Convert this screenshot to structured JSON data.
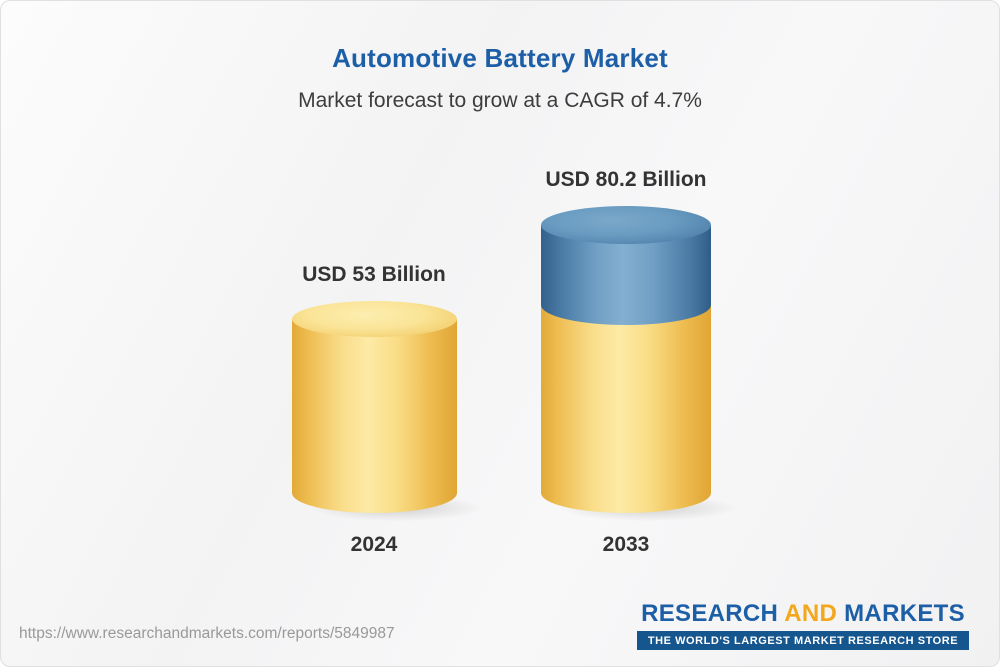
{
  "header": {
    "title": "Automotive Battery Market",
    "subtitle": "Market forecast to grow at a CAGR of 4.7%"
  },
  "chart_data": {
    "type": "bar",
    "title": "Automotive Battery Market",
    "subtitle": "Market forecast to grow at a CAGR of 4.7%",
    "categories": [
      "2024",
      "2033"
    ],
    "values": [
      53,
      80.2
    ],
    "unit": "USD Billion",
    "value_labels": [
      "USD 53 Billion",
      "USD 80.2 Billion"
    ],
    "cagr_percent": 4.7,
    "legend": "none",
    "axes": "none",
    "grid": false,
    "bar_style": "3d-cylinder",
    "colors": {
      "base_segment": "#F5CB5E",
      "growth_segment": "#4E80AC",
      "title": "#1D5FA7",
      "label_text": "#333333"
    }
  },
  "footer": {
    "url": "https://www.researchandmarkets.com/reports/5849987",
    "logo": {
      "research": "RESEARCH",
      "and": "AND",
      "markets": "MARKETS",
      "tagline": "THE WORLD'S LARGEST MARKET RESEARCH STORE"
    }
  }
}
